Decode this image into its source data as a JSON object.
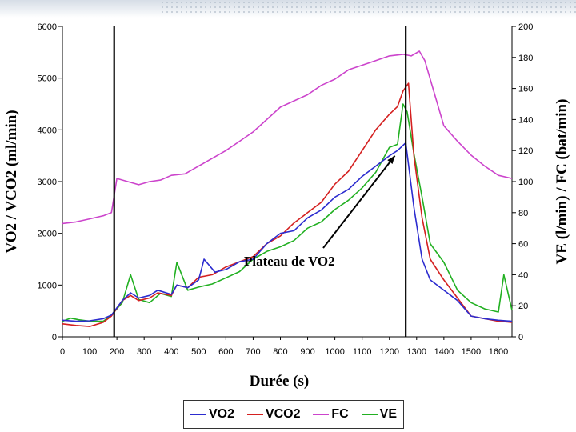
{
  "chart_data": {
    "type": "line",
    "title": "",
    "xlabel": "Durée (s)",
    "ylabel_left": "VO2 / VCO2 (ml/min)",
    "ylabel_right": "VE (l/min) / FC (bat/min)",
    "xlim": [
      0,
      1650
    ],
    "ylim_left": [
      0,
      6000
    ],
    "ylim_right": [
      0,
      200
    ],
    "x_ticks": [
      0,
      100,
      200,
      300,
      400,
      500,
      600,
      700,
      800,
      900,
      1000,
      1100,
      1200,
      1300,
      1400,
      1500,
      1600
    ],
    "y_left_ticks": [
      0,
      1000,
      2000,
      3000,
      4000,
      5000,
      6000
    ],
    "y_right_ticks": [
      0,
      20,
      40,
      60,
      80,
      100,
      120,
      140,
      160,
      180,
      200
    ],
    "grid": false,
    "legend_position": "bottom",
    "vertical_markers": [
      190,
      1260
    ],
    "annotation": {
      "text": "Plateau de VO2",
      "x": 1220,
      "y": 3500
    },
    "series": [
      {
        "name": "VO2",
        "axis": "left",
        "color": "#2c2ccf",
        "x": [
          0,
          50,
          100,
          150,
          180,
          220,
          250,
          280,
          320,
          350,
          400,
          420,
          460,
          500,
          520,
          560,
          600,
          650,
          700,
          750,
          800,
          850,
          900,
          950,
          1000,
          1050,
          1100,
          1150,
          1200,
          1230,
          1260,
          1290,
          1320,
          1350,
          1400,
          1450,
          1500,
          1550,
          1600,
          1650
        ],
        "y": [
          320,
          300,
          310,
          350,
          420,
          700,
          850,
          750,
          800,
          900,
          820,
          1000,
          950,
          1100,
          1500,
          1250,
          1300,
          1450,
          1500,
          1800,
          2000,
          2050,
          2300,
          2450,
          2700,
          2850,
          3100,
          3300,
          3500,
          3600,
          3750,
          2500,
          1500,
          1100,
          900,
          700,
          400,
          350,
          320,
          300
        ]
      },
      {
        "name": "VCO2",
        "axis": "left",
        "color": "#d42020",
        "x": [
          0,
          50,
          100,
          150,
          180,
          220,
          250,
          280,
          320,
          350,
          400,
          420,
          460,
          500,
          550,
          600,
          650,
          700,
          750,
          800,
          850,
          900,
          950,
          1000,
          1050,
          1100,
          1150,
          1200,
          1230,
          1250,
          1270,
          1290,
          1320,
          1350,
          1400,
          1450,
          1500,
          1550,
          1600,
          1650
        ],
        "y": [
          250,
          220,
          200,
          280,
          400,
          700,
          800,
          700,
          750,
          850,
          800,
          1000,
          950,
          1150,
          1200,
          1350,
          1450,
          1550,
          1800,
          1950,
          2200,
          2400,
          2600,
          2950,
          3200,
          3600,
          4000,
          4300,
          4450,
          4750,
          4900,
          3500,
          2300,
          1500,
          1100,
          750,
          400,
          350,
          300,
          280
        ]
      },
      {
        "name": "FC",
        "axis": "right",
        "color": "#cc44cc",
        "x": [
          0,
          50,
          100,
          150,
          180,
          200,
          240,
          280,
          320,
          360,
          400,
          450,
          500,
          550,
          600,
          650,
          700,
          750,
          800,
          850,
          900,
          950,
          1000,
          1050,
          1100,
          1150,
          1200,
          1250,
          1280,
          1310,
          1330,
          1360,
          1400,
          1450,
          1500,
          1550,
          1600,
          1650
        ],
        "y": [
          73,
          74,
          76,
          78,
          80,
          102,
          100,
          98,
          100,
          101,
          104,
          105,
          110,
          115,
          120,
          126,
          132,
          140,
          148,
          152,
          156,
          162,
          166,
          172,
          175,
          178,
          181,
          182,
          181,
          184,
          178,
          160,
          136,
          126,
          117,
          110,
          104,
          102
        ]
      },
      {
        "name": "VE",
        "axis": "right",
        "color": "#22b022",
        "x": [
          0,
          30,
          60,
          100,
          150,
          180,
          220,
          250,
          280,
          320,
          360,
          400,
          420,
          460,
          500,
          550,
          600,
          650,
          700,
          750,
          800,
          850,
          900,
          950,
          1000,
          1050,
          1100,
          1150,
          1200,
          1230,
          1250,
          1265,
          1290,
          1320,
          1350,
          1400,
          1450,
          1500,
          1550,
          1600,
          1620,
          1650
        ],
        "y": [
          10,
          12,
          11,
          10,
          10,
          14,
          22,
          40,
          24,
          22,
          28,
          26,
          48,
          30,
          32,
          34,
          38,
          42,
          50,
          55,
          58,
          62,
          70,
          74,
          82,
          88,
          96,
          106,
          122,
          124,
          150,
          145,
          118,
          90,
          60,
          48,
          30,
          22,
          18,
          16,
          40,
          17
        ]
      }
    ]
  }
}
